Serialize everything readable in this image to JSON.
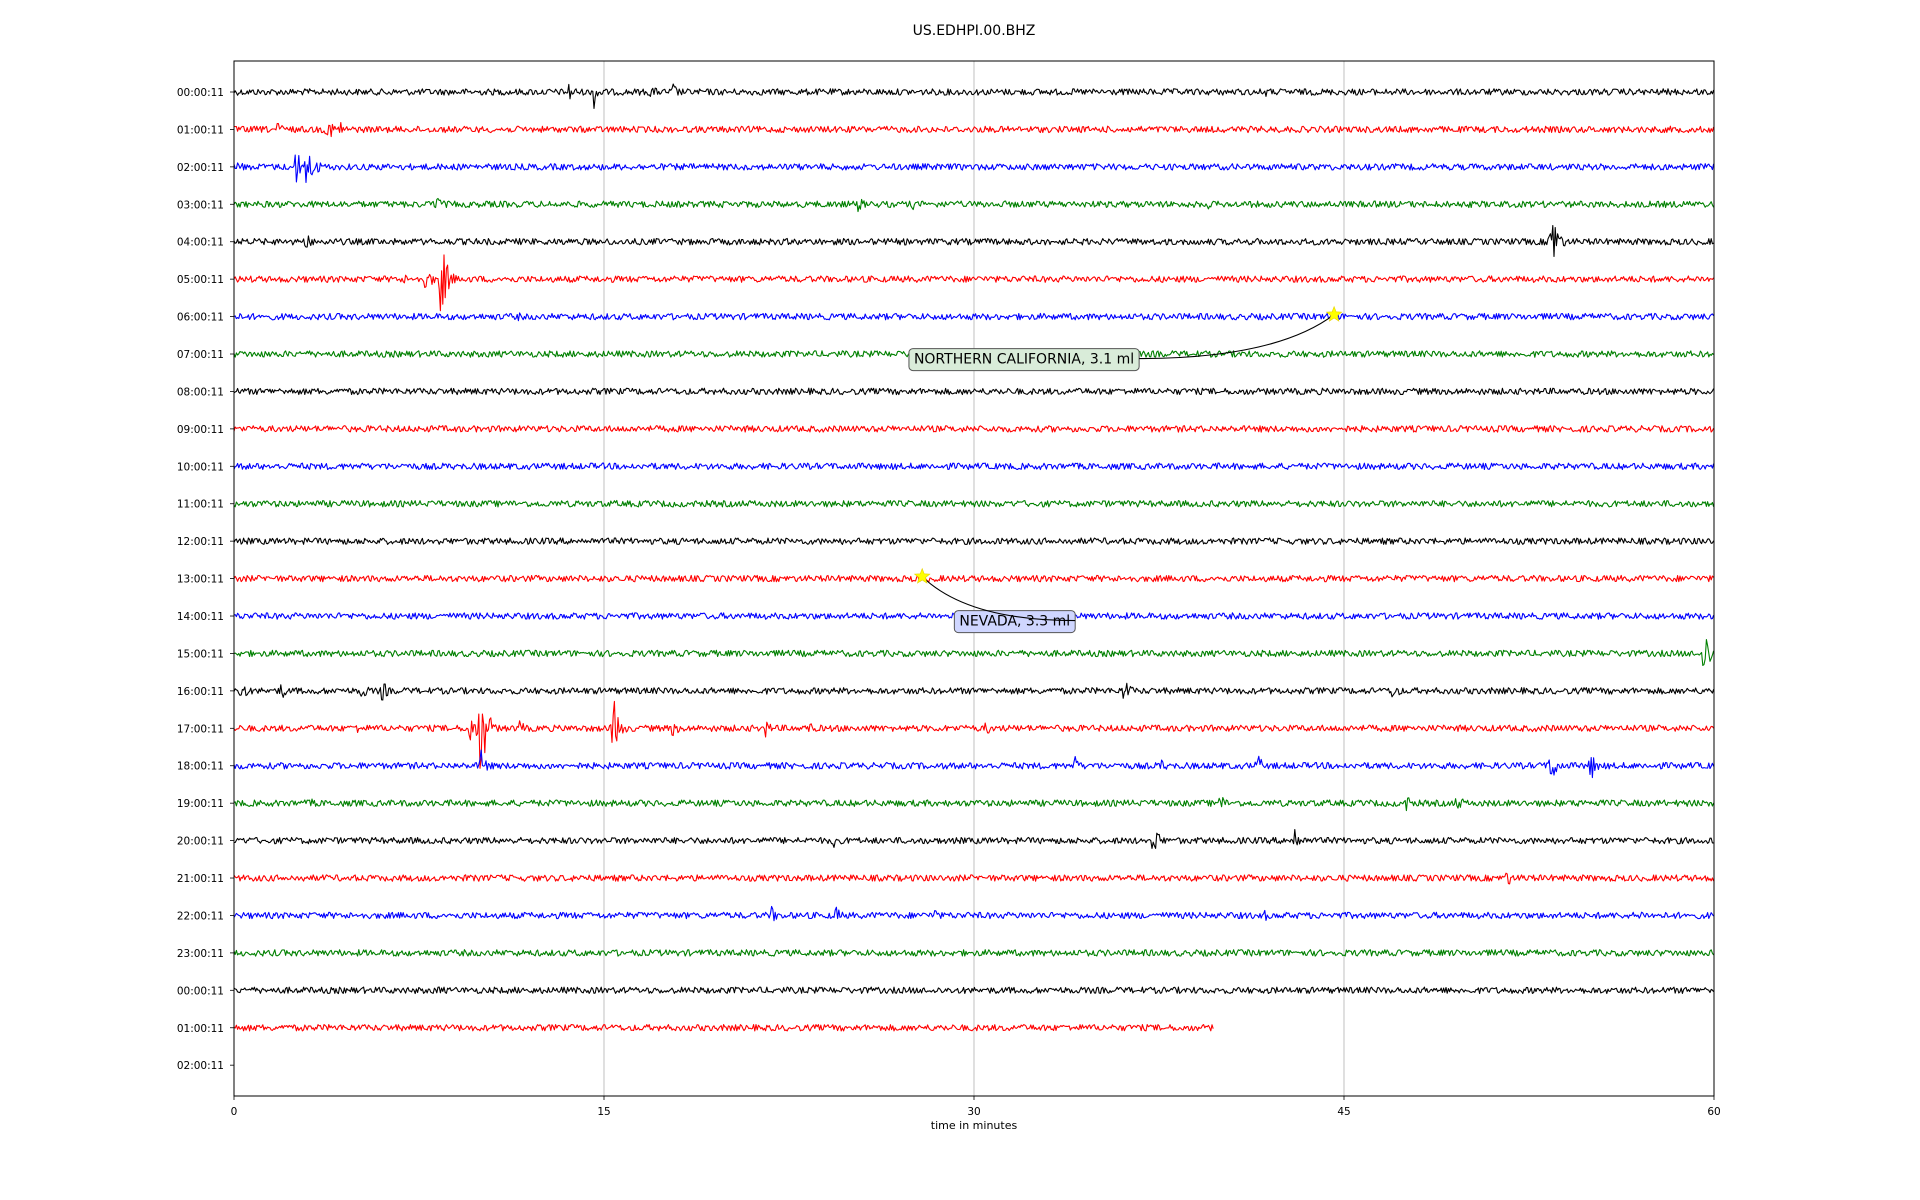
{
  "chart_data": {
    "type": "line",
    "title": "US.EDHPI.00.BHZ",
    "xlabel": "time in minutes",
    "ylabel": "",
    "xlim": [
      0,
      60
    ],
    "x_ticks": [
      "0",
      "15",
      "30",
      "45",
      "60"
    ],
    "grid": "vertical",
    "row_labels": [
      "00:00:11",
      "01:00:11",
      "02:00:11",
      "03:00:11",
      "04:00:11",
      "05:00:11",
      "06:00:11",
      "07:00:11",
      "08:00:11",
      "09:00:11",
      "10:00:11",
      "11:00:11",
      "12:00:11",
      "13:00:11",
      "14:00:11",
      "15:00:11",
      "16:00:11",
      "17:00:11",
      "18:00:11",
      "19:00:11",
      "20:00:11",
      "21:00:11",
      "22:00:11",
      "23:00:11",
      "00:00:11",
      "01:00:11",
      "02:00:11"
    ],
    "trace_colors": [
      "#000000",
      "#ff0000",
      "#0000ff",
      "#008000"
    ],
    "last_trace_end_minutes": 39.7,
    "bursts": [
      {
        "row": 0,
        "t": 13.6,
        "amp": 12
      },
      {
        "row": 0,
        "t": 14.6,
        "amp": 18
      },
      {
        "row": 0,
        "t": 16.9,
        "amp": 9
      },
      {
        "row": 0,
        "t": 17.8,
        "amp": 10
      },
      {
        "row": 0,
        "t": 6.2,
        "amp": 6
      },
      {
        "row": 0,
        "t": 41.8,
        "amp": 6
      },
      {
        "row": 1,
        "t": 1.8,
        "amp": 9
      },
      {
        "row": 1,
        "t": 3.8,
        "amp": 14
      },
      {
        "row": 1,
        "t": 4.3,
        "amp": 10
      },
      {
        "row": 2,
        "t": 0.2,
        "amp": 8
      },
      {
        "row": 2,
        "t": 2.5,
        "amp": 20
      },
      {
        "row": 2,
        "t": 2.9,
        "amp": 25
      },
      {
        "row": 2,
        "t": 3.2,
        "amp": 15
      },
      {
        "row": 3,
        "t": 8.2,
        "amp": 12
      },
      {
        "row": 3,
        "t": 25.3,
        "amp": 10
      },
      {
        "row": 3,
        "t": 27.5,
        "amp": 6
      },
      {
        "row": 3,
        "t": 39.5,
        "amp": 5
      },
      {
        "row": 4,
        "t": 53.4,
        "amp": 40
      },
      {
        "row": 4,
        "t": 53.6,
        "amp": 10
      },
      {
        "row": 4,
        "t": 2.9,
        "amp": 10
      },
      {
        "row": 5,
        "t": 8.4,
        "amp": 42
      },
      {
        "row": 5,
        "t": 7.8,
        "amp": 15
      },
      {
        "row": 5,
        "t": 6.9,
        "amp": 6
      },
      {
        "row": 6,
        "t": 11.5,
        "amp": 5
      },
      {
        "row": 16,
        "t": 0.3,
        "amp": 12
      },
      {
        "row": 16,
        "t": 1.9,
        "amp": 10
      },
      {
        "row": 16,
        "t": 5.2,
        "amp": 10
      },
      {
        "row": 16,
        "t": 6.0,
        "amp": 12
      },
      {
        "row": 16,
        "t": 36.1,
        "amp": 14
      },
      {
        "row": 16,
        "t": 47.0,
        "amp": 12
      },
      {
        "row": 17,
        "t": 10.0,
        "amp": 55
      },
      {
        "row": 17,
        "t": 9.6,
        "amp": 20
      },
      {
        "row": 17,
        "t": 15.4,
        "amp": 30
      },
      {
        "row": 17,
        "t": 17.8,
        "amp": 10
      },
      {
        "row": 17,
        "t": 21.5,
        "amp": 12
      },
      {
        "row": 17,
        "t": 23.3,
        "amp": 8
      },
      {
        "row": 17,
        "t": 30.5,
        "amp": 8
      },
      {
        "row": 17,
        "t": 11.6,
        "amp": 9
      },
      {
        "row": 17,
        "t": 5.0,
        "amp": 6
      },
      {
        "row": 18,
        "t": 10.0,
        "amp": 18
      },
      {
        "row": 18,
        "t": 34.1,
        "amp": 10
      },
      {
        "row": 18,
        "t": 37.6,
        "amp": 8
      },
      {
        "row": 18,
        "t": 41.5,
        "amp": 12
      },
      {
        "row": 18,
        "t": 53.4,
        "amp": 20
      },
      {
        "row": 18,
        "t": 55.0,
        "amp": 16
      },
      {
        "row": 19,
        "t": 3.2,
        "amp": 6
      },
      {
        "row": 19,
        "t": 40.0,
        "amp": 10
      },
      {
        "row": 19,
        "t": 47.5,
        "amp": 10
      },
      {
        "row": 19,
        "t": 49.6,
        "amp": 10
      },
      {
        "row": 19,
        "t": 54.5,
        "amp": 6
      },
      {
        "row": 20,
        "t": 24.3,
        "amp": 8
      },
      {
        "row": 20,
        "t": 37.3,
        "amp": 18
      },
      {
        "row": 20,
        "t": 43.0,
        "amp": 16
      },
      {
        "row": 21,
        "t": 9.5,
        "amp": 5
      },
      {
        "row": 21,
        "t": 14.0,
        "amp": 5
      },
      {
        "row": 21,
        "t": 51.6,
        "amp": 10
      },
      {
        "row": 21,
        "t": 52.3,
        "amp": 6
      },
      {
        "row": 22,
        "t": 21.8,
        "amp": 10
      },
      {
        "row": 22,
        "t": 24.4,
        "amp": 10
      },
      {
        "row": 22,
        "t": 28.4,
        "amp": 8
      },
      {
        "row": 22,
        "t": 41.8,
        "amp": 6
      },
      {
        "row": 22,
        "t": 57.0,
        "amp": 6
      },
      {
        "row": 23,
        "t": 14.0,
        "amp": 5
      },
      {
        "row": 24,
        "t": 8.3,
        "amp": 6
      },
      {
        "row": 15,
        "t": 59.6,
        "amp": 28
      }
    ],
    "events": [
      {
        "label": "NORTHERN CALIFORNIA, 3.1 ml",
        "row": 6,
        "t": 44.6
      },
      {
        "label": "NEVADA, 3.3 ml",
        "row": 13,
        "t": 27.9
      }
    ]
  }
}
